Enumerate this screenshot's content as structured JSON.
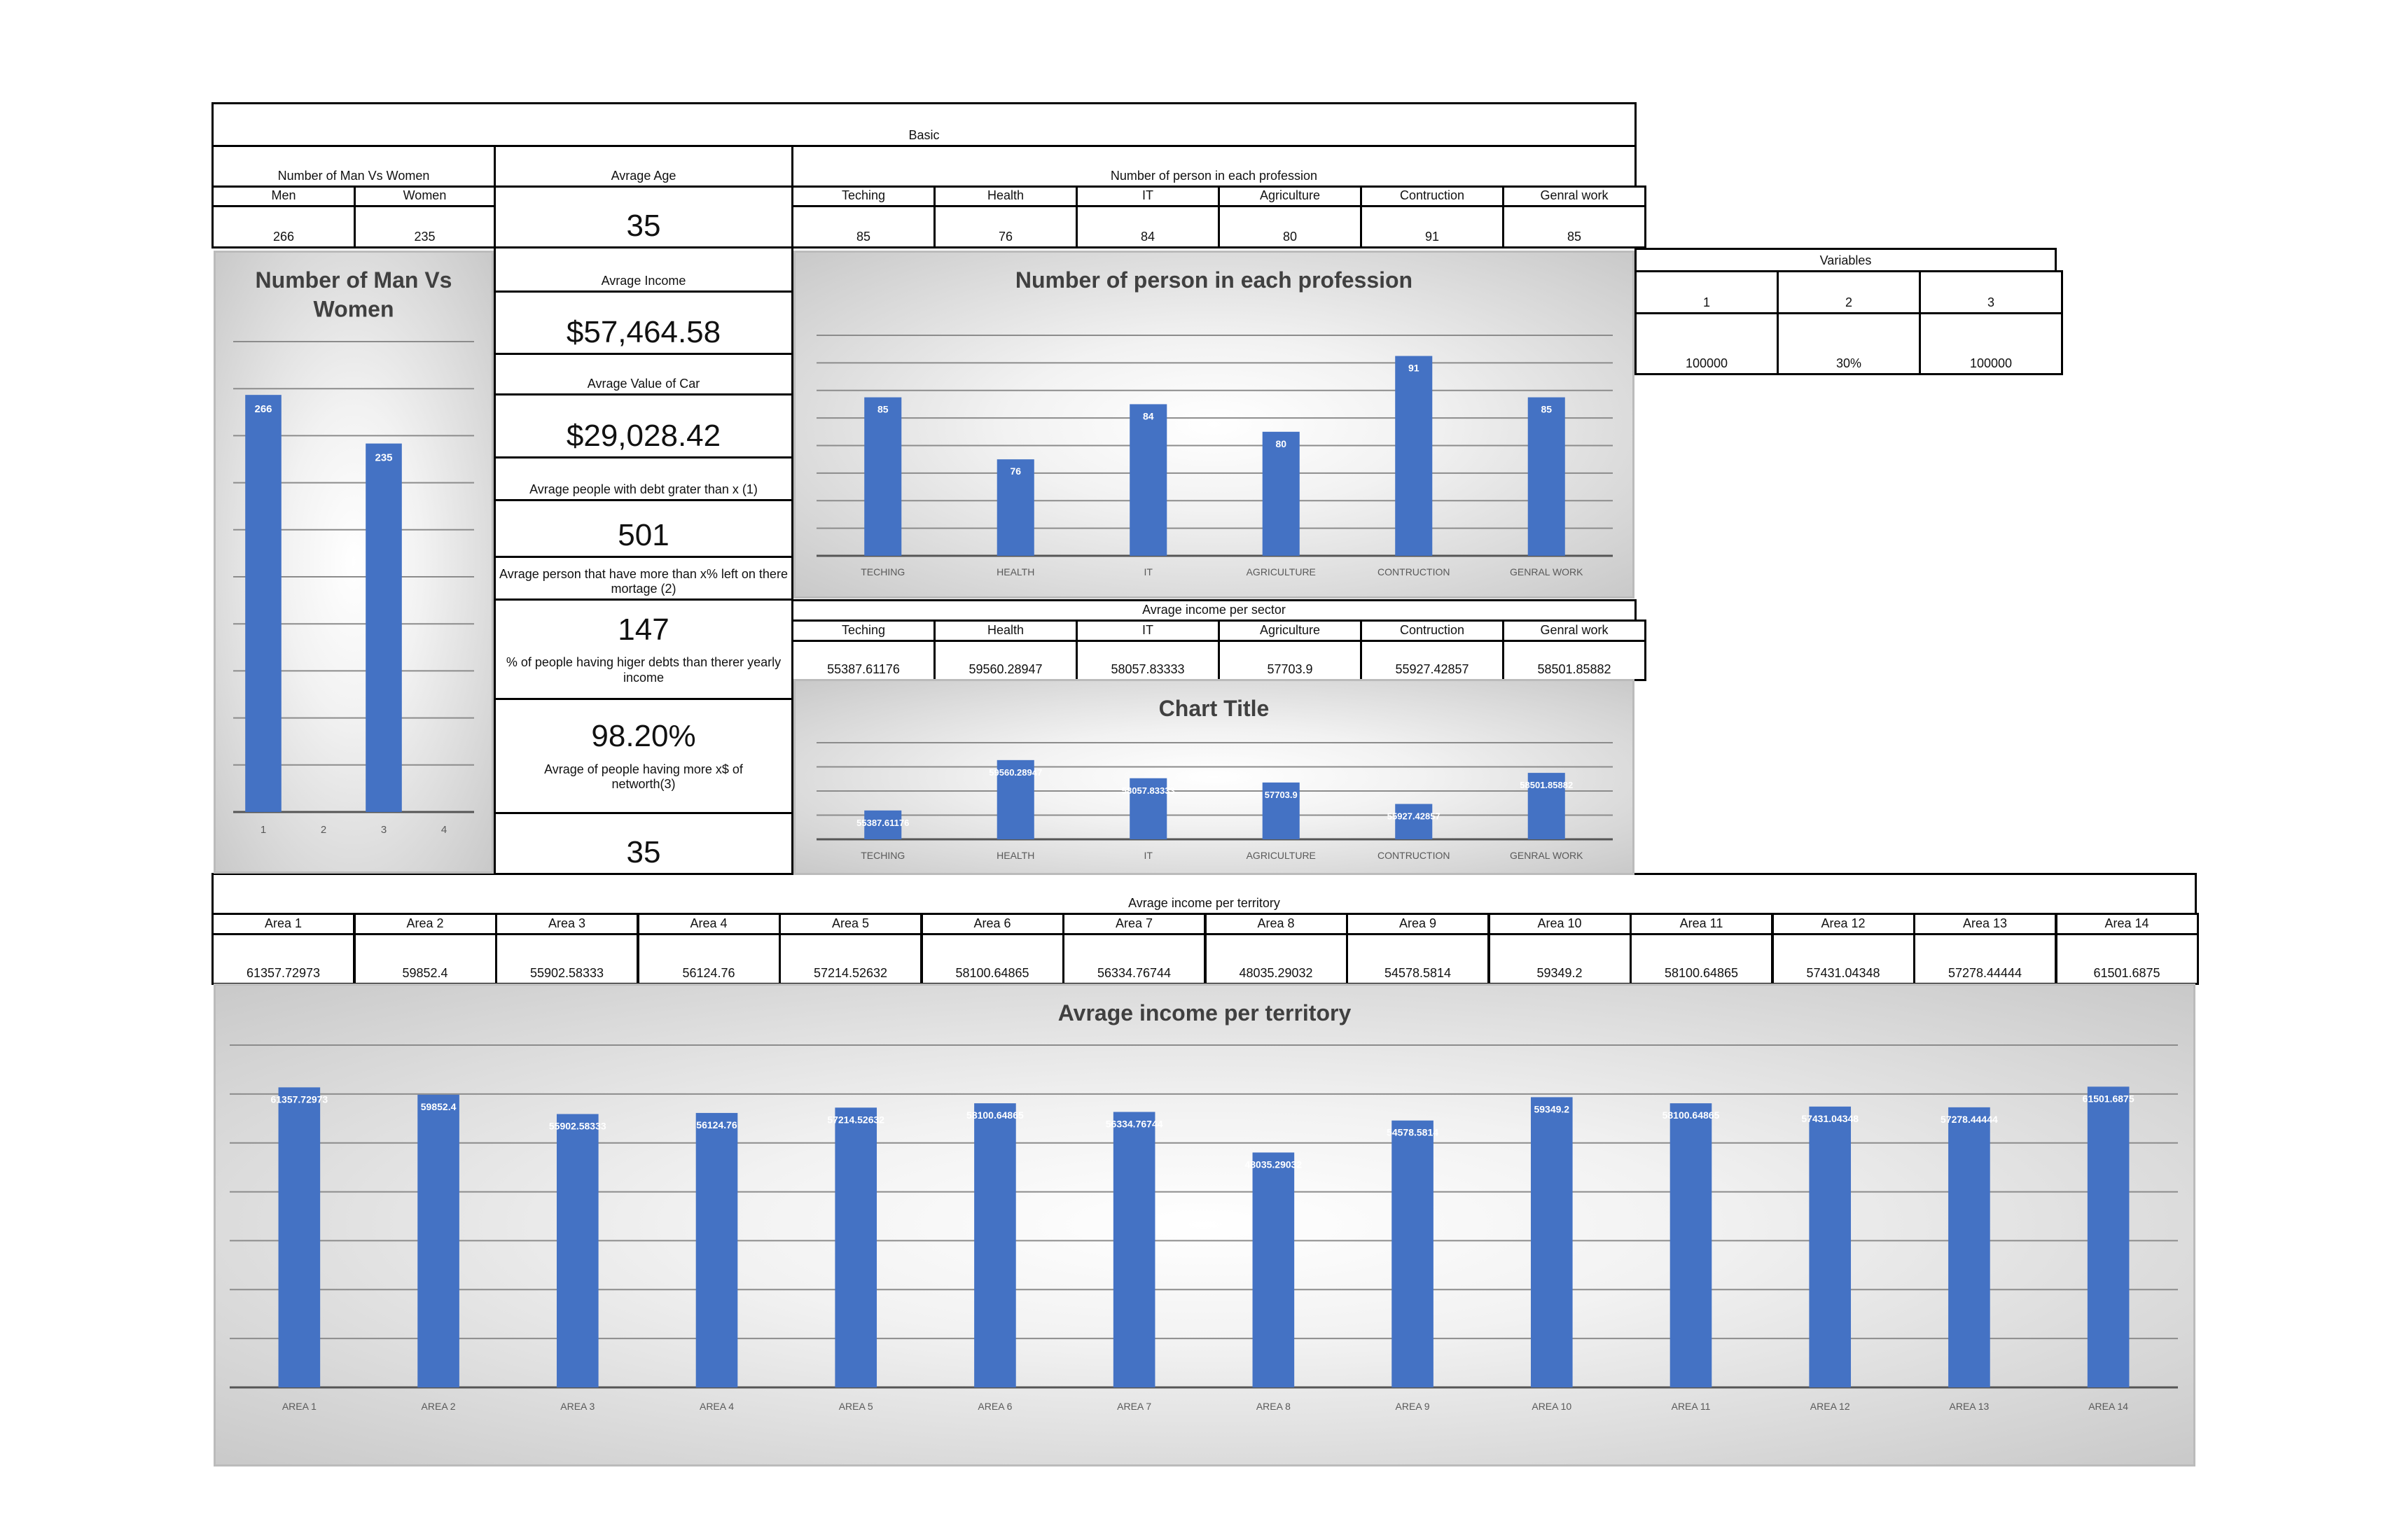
{
  "colors": {
    "bar": "#4472c4",
    "grid": "#8c8c8c"
  },
  "basic_title": "Basic",
  "men_women": {
    "title": "Number of Man Vs Women",
    "men_label": "Men",
    "women_label": "Women",
    "men": "266",
    "women": "235"
  },
  "age": {
    "title": "Avrage Age",
    "value": "35"
  },
  "profession": {
    "title": "Number of person in each profession",
    "labels": [
      "Teching",
      "Health",
      "IT",
      "Agriculture",
      "Contruction",
      "Genral work"
    ],
    "values": [
      "85",
      "76",
      "84",
      "80",
      "91",
      "85"
    ]
  },
  "stats": {
    "income_label": "Avrage Income",
    "income_value": "$57,464.58",
    "car_label": "Avrage Value of Car",
    "car_value": "$29,028.42",
    "debt_label": "Avrage people with debt grater than x (1)",
    "debt_value": "501",
    "mortgage_label": "Avrage person that have more than x% left on there mortage (2)",
    "mortgage_value": "147",
    "higher_debt_label": "% of people having higer debts than therer yearly income",
    "higher_debt_value": "98.20%",
    "networth_label": "Avrage of people having more x$ of networth(3)",
    "networth_value": "35"
  },
  "variables": {
    "title": "Variables",
    "headers": [
      "1",
      "2",
      "3"
    ],
    "values": [
      "100000",
      "30%",
      "100000"
    ]
  },
  "sector_income": {
    "title": "Avrage income per sector",
    "labels": [
      "Teching",
      "Health",
      "IT",
      "Agriculture",
      "Contruction",
      "Genral work"
    ],
    "values": [
      "55387.61176",
      "59560.28947",
      "58057.83333",
      "57703.9",
      "55927.42857",
      "58501.85882"
    ]
  },
  "territory": {
    "title": "Avrage income per territory",
    "labels": [
      "Area 1",
      "Area 2",
      "Area 3",
      "Area 4",
      "Area 5",
      "Area 6",
      "Area 7",
      "Area 8",
      "Area 9",
      "Area 10",
      "Area 11",
      "Area 12",
      "Area 13",
      "Area 14"
    ],
    "values": [
      "61357.72973",
      "59852.4",
      "55902.58333",
      "56124.76",
      "57214.52632",
      "58100.64865",
      "56334.76744",
      "48035.29032",
      "54578.5814",
      "59349.2",
      "58100.64865",
      "57431.04348",
      "57278.44444",
      "61501.6875"
    ]
  },
  "chart_data": [
    {
      "type": "bar",
      "title": "Number of Man Vs Women",
      "categories": [
        "1",
        "2",
        "3",
        "4"
      ],
      "values": [
        266,
        null,
        235,
        null
      ],
      "data_labels": [
        "266",
        "",
        "235",
        ""
      ],
      "ylim": [
        0,
        300
      ],
      "grid": true
    },
    {
      "type": "bar",
      "title": "Number of person in each profession",
      "categories": [
        "TECHING",
        "HEALTH",
        "IT",
        "AGRICULTURE",
        "CONTRUCTION",
        "GENRAL WORK"
      ],
      "values": [
        85,
        76,
        84,
        80,
        91,
        85
      ],
      "data_labels": [
        "85",
        "76",
        "84",
        "80",
        "91",
        "85"
      ],
      "ylim": [
        62,
        94
      ],
      "grid": true
    },
    {
      "type": "bar",
      "title": "Chart Title",
      "categories": [
        "TECHING",
        "HEALTH",
        "IT",
        "AGRICULTURE",
        "CONTRUCTION",
        "GENRAL WORK"
      ],
      "values": [
        55387.61176,
        59560.28947,
        58057.83333,
        57703.9,
        55927.42857,
        58501.85882
      ],
      "data_labels": [
        "55387.61176",
        "59560.28947",
        "58057.83333",
        "57703.9",
        "55927.42857",
        "58501.85882"
      ],
      "ylim": [
        53000,
        61000
      ],
      "grid": true
    },
    {
      "type": "bar",
      "title": "Avrage income per territory",
      "categories": [
        "AREA 1",
        "AREA 2",
        "AREA 3",
        "AREA 4",
        "AREA 5",
        "AREA 6",
        "AREA 7",
        "AREA 8",
        "AREA 9",
        "AREA 10",
        "AREA 11",
        "AREA 12",
        "AREA 13",
        "AREA 14"
      ],
      "values": [
        61357.72973,
        59852.4,
        55902.58333,
        56124.76,
        57214.52632,
        58100.64865,
        56334.76744,
        48035.29032,
        54578.5814,
        59349.2,
        58100.64865,
        57431.04348,
        57278.44444,
        61501.6875
      ],
      "data_labels": [
        "61357.72973",
        "59852.4",
        "55902.58333",
        "56124.76",
        "57214.52632",
        "58100.64865",
        "56334.76744",
        "48035.29032",
        "54578.5814",
        "59349.2",
        "58100.64865",
        "57431.04348",
        "57278.44444",
        "61501.6875"
      ],
      "ylim": [
        0,
        70000
      ],
      "grid": true
    }
  ]
}
